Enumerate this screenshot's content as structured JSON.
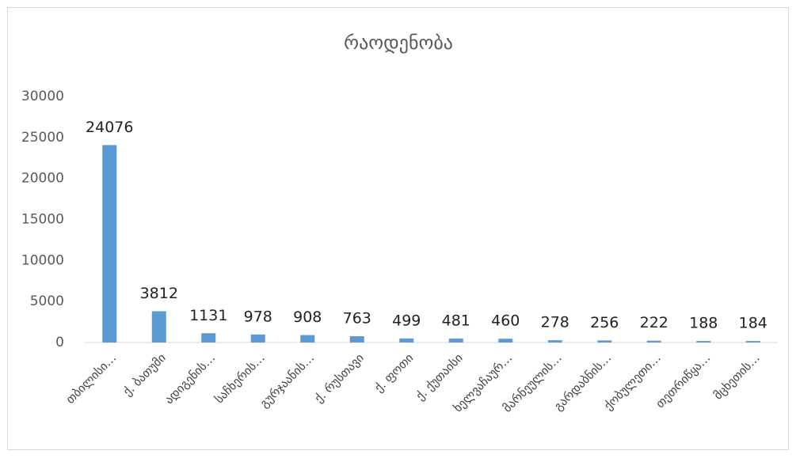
{
  "chart_data": {
    "type": "bar",
    "title": "რაოდენობა",
    "categories": [
      "თბილისი…",
      "ქ. ბათუმი",
      "ადიგენის…",
      "საჩხერის…",
      "გურჯაანის…",
      "ქ. რუსთავი",
      "ქ. ფოთი",
      "ქ. ქუთაისი",
      "ხელვაჩაურ…",
      "მარნეულის…",
      "გარდაბნის…",
      "ქობულეთი…",
      "თეთრიწყა…",
      "მცხეთის…"
    ],
    "values": [
      24076,
      3812,
      1131,
      978,
      908,
      763,
      499,
      481,
      460,
      278,
      256,
      222,
      188,
      184
    ],
    "color": "#5b9bd5",
    "ylim": [
      0,
      30000
    ],
    "yticks": [
      0,
      5000,
      10000,
      15000,
      20000,
      25000,
      30000
    ],
    "grid": false
  }
}
